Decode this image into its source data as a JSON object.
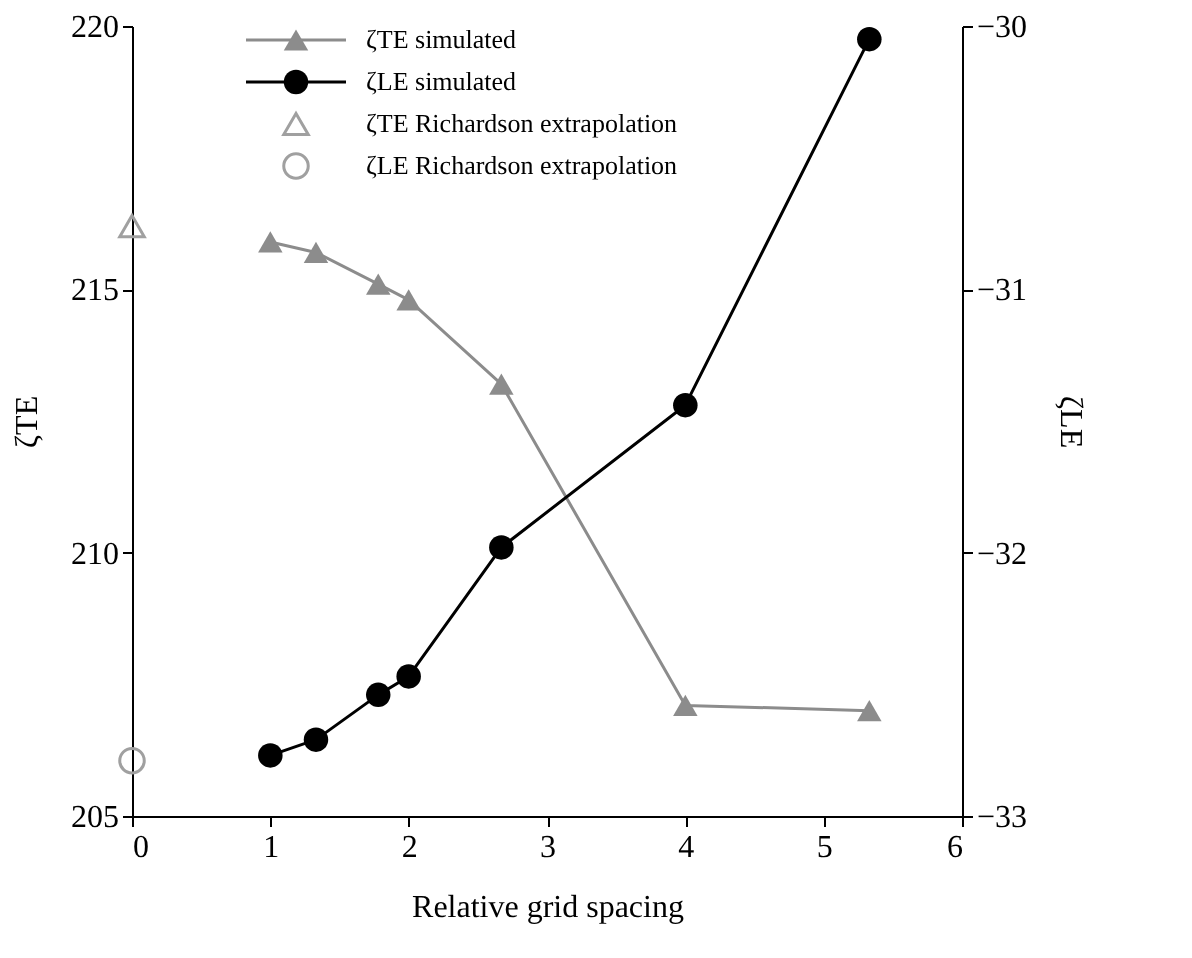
{
  "chart_data": {
    "type": "line",
    "xlabel": "Relative grid spacing",
    "ylabel": "ζTE",
    "y2label": "ζLE",
    "xlim": [
      0,
      6
    ],
    "xticks": [
      0,
      1,
      2,
      3,
      4,
      5,
      6
    ],
    "ylim": [
      205,
      220
    ],
    "yticks": [
      205,
      210,
      215,
      220
    ],
    "y2lim": [
      -33,
      -30
    ],
    "y2ticks": [
      {
        "value": -33,
        "label": "−33"
      },
      {
        "value": -32,
        "label": "−32"
      },
      {
        "value": -31,
        "label": "−31"
      },
      {
        "value": -30,
        "label": "−30"
      }
    ],
    "grid": false,
    "legend": "top",
    "series": [
      {
        "name": "ζTE simulated",
        "marker": "triangle",
        "color": "#8c8c8c",
        "x": [
          1,
          1.33,
          1.78,
          2,
          2.67,
          4,
          5.33
        ],
        "values": [
          215.9,
          215.7,
          215.1,
          214.8,
          213.2,
          207.1,
          207.0
        ]
      },
      {
        "name": "ζLE simulated",
        "marker": "circle",
        "color": "#000000",
        "axis": "y2",
        "x": [
          1,
          1.33,
          1.78,
          2,
          2.67,
          4,
          5.33
        ],
        "values": [
          -32.77,
          -32.71,
          -32.54,
          -32.47,
          -31.98,
          -31.44,
          -30.05
        ]
      },
      {
        "name": "ζTE Richardson  extrapolation",
        "type": "scatter",
        "marker": "triangle",
        "color": "#a0a0a0",
        "x": [
          0
        ],
        "values": [
          216.2
        ]
      },
      {
        "name": "ζLE Richardson  extrapolation",
        "type": "scatter",
        "marker": "circle",
        "color": "#a0a0a0",
        "axis": "y2",
        "x": [
          0
        ],
        "values": [
          -32.79
        ]
      }
    ]
  }
}
